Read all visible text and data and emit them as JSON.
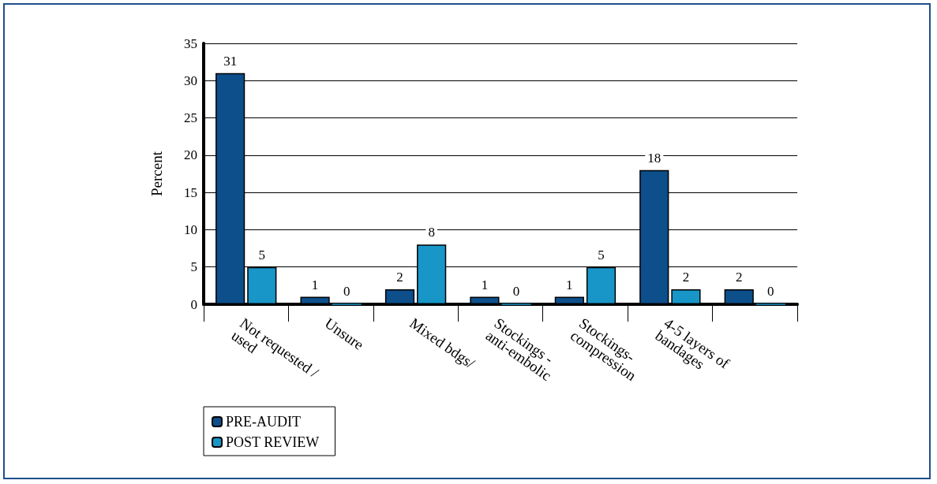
{
  "chart_data": {
    "type": "bar",
    "ylabel": "Percent",
    "categories": [
      "Not requested /used",
      "Unsure",
      "Mixed bdgs/",
      "Stockings - anti-embolic",
      "Stockings- compression",
      "4-5 layers of bandages",
      null
    ],
    "series": [
      {
        "name": "PRE-AUDIT",
        "color": "#0d4f8b",
        "values": [
          31,
          1,
          2,
          1,
          1,
          18,
          2
        ]
      },
      {
        "name": "POST REVIEW",
        "color": "#1896c8",
        "values": [
          5,
          0,
          8,
          0,
          5,
          2,
          0
        ]
      }
    ],
    "ylim": [
      0,
      35
    ],
    "yticks": [
      0,
      5,
      10,
      15,
      20,
      25,
      30,
      35
    ],
    "grid": "y",
    "legend": "bottom left",
    "data_labels": true
  }
}
